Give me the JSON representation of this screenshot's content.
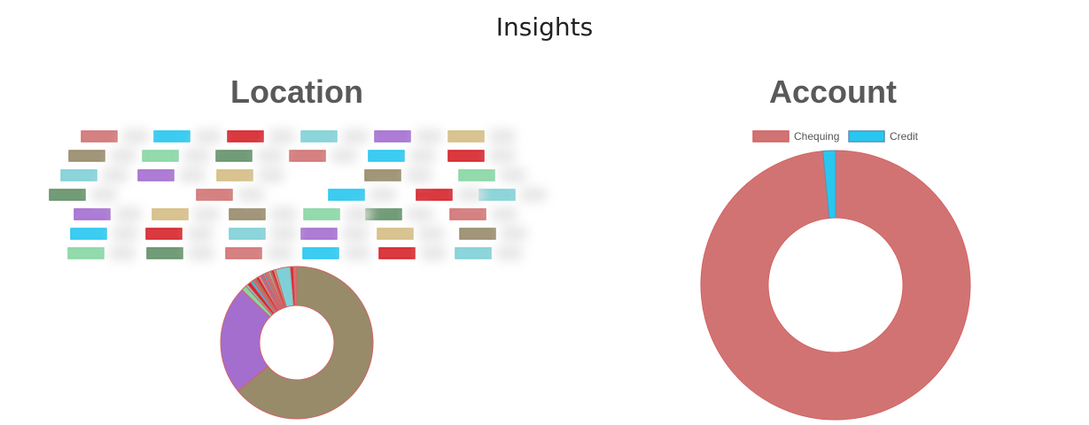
{
  "page": {
    "title": "Insights"
  },
  "chart_data": [
    {
      "type": "pie",
      "variant": "doughnut",
      "title": "Location",
      "legend_position": "top",
      "legend_labels_obscured": true,
      "categories": [
        "",
        "",
        "",
        "",
        "",
        "",
        "",
        "",
        "",
        "",
        "",
        "",
        "",
        "",
        "",
        "",
        "",
        "",
        "",
        "",
        "",
        ""
      ],
      "values": [
        66.5,
        24.0,
        1.2,
        0.5,
        0.8,
        0.6,
        0.5,
        0.4,
        0.6,
        0.4,
        0.5,
        0.3,
        0.4,
        0.5,
        0.3,
        0.4,
        0.3,
        0.5,
        0.4,
        3.3,
        0.6,
        0.8
      ],
      "colors": [
        "#978b6a",
        "#a46ecf",
        "#87d6a4",
        "#7fd0d6",
        "#d5232a",
        "#28c7f0",
        "#d27373",
        "#639168",
        "#d72328",
        "#d5bd84",
        "#a46ecf",
        "#978b6a",
        "#28c7f0",
        "#d27373",
        "#7fd0d6",
        "#87d6a4",
        "#639168",
        "#d5232a",
        "#d5bd84",
        "#7fd0d6",
        "#d72328",
        "#d27373"
      ],
      "legend_colors": [
        "#d27373",
        "#28c7f0",
        "#d5232a",
        "#7fd0d6",
        "#a46ecf",
        "#d5bd84",
        "#978b6a",
        "#87d6a4",
        "#639168",
        "#d27373",
        "#28c7f0",
        "#d5232a",
        "#7fd0d6",
        "#a46ecf",
        "#d5bd84",
        "#978b6a",
        "#87d6a4",
        "#639168",
        "#d27373",
        "#28c7f0",
        "#d5232a",
        "#7fd0d6",
        "#a46ecf",
        "#d5bd84",
        "#978b6a",
        "#87d6a4",
        "#639168",
        "#d27373",
        "#28c7f0",
        "#d5232a",
        "#7fd0d6",
        "#a46ecf",
        "#d5bd84",
        "#978b6a",
        "#87d6a4",
        "#639168",
        "#d27373",
        "#28c7f0",
        "#d5232a",
        "#7fd0d6"
      ]
    },
    {
      "type": "pie",
      "variant": "doughnut",
      "title": "Account",
      "legend_position": "top",
      "categories": [
        "Chequing",
        "Credit"
      ],
      "values": [
        98.5,
        1.5
      ],
      "colors": [
        "#d27373",
        "#28c7f0"
      ],
      "border_colors": [
        "#d36262",
        "#5f8fb0"
      ]
    }
  ]
}
